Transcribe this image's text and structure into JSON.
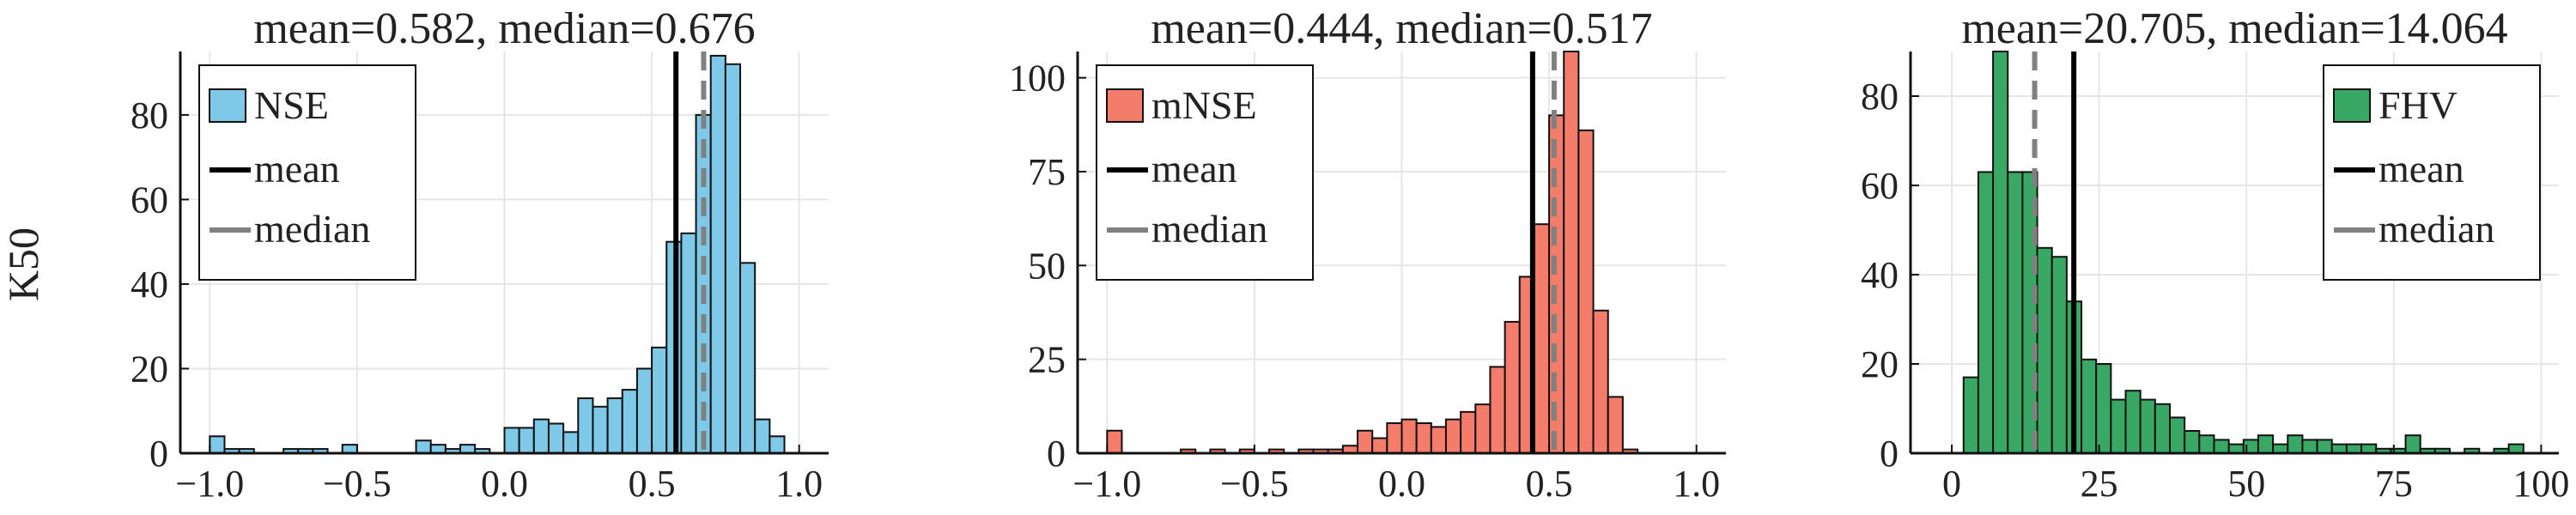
{
  "figure": {
    "row_label": "K50"
  },
  "chart_data": [
    {
      "type": "bar",
      "subtype": "histogram",
      "title": "mean=0.582, median=0.676",
      "xlabel": "",
      "ylabel": "K50",
      "xlim": [
        -1.1,
        1.1
      ],
      "ylim": [
        0,
        95
      ],
      "xticks": [
        -1.0,
        -0.5,
        0.0,
        0.5,
        1.0
      ],
      "xtick_labels": [
        "−1.0",
        "−0.5",
        "0.0",
        "0.5",
        "1.0"
      ],
      "yticks": [
        0,
        20,
        40,
        60,
        80
      ],
      "ytick_labels": [
        "0",
        "20",
        "40",
        "60",
        "80"
      ],
      "grid": true,
      "color": "#7ec8e8",
      "bin_start": -1.0,
      "bin_width": 0.05,
      "counts": [
        4,
        1,
        1,
        0,
        0,
        1,
        1,
        1,
        0,
        2,
        0,
        0,
        0,
        0,
        3,
        2,
        1,
        2,
        1,
        0,
        6,
        6,
        8,
        7,
        5,
        13,
        11,
        13,
        15,
        20,
        25,
        50,
        52,
        80,
        94,
        92,
        45,
        8,
        4,
        0
      ],
      "mean": 0.582,
      "median": 0.676,
      "legend": {
        "position": "top-left",
        "entries": [
          "NSE",
          "mean",
          "median"
        ]
      }
    },
    {
      "type": "bar",
      "subtype": "histogram",
      "title": "mean=0.444, median=0.517",
      "xlabel": "",
      "ylabel": "",
      "xlim": [
        -1.1,
        1.1
      ],
      "ylim": [
        0,
        107
      ],
      "xticks": [
        -1.0,
        -0.5,
        0.0,
        0.5,
        1.0
      ],
      "xtick_labels": [
        "−1.0",
        "−0.5",
        "0.0",
        "0.5",
        "1.0"
      ],
      "yticks": [
        0,
        25,
        50,
        75,
        100
      ],
      "ytick_labels": [
        "0",
        "25",
        "50",
        "75",
        "100"
      ],
      "grid": true,
      "color": "#f47c6b",
      "bin_start": -1.0,
      "bin_width": 0.05,
      "counts": [
        6,
        0,
        0,
        0,
        0,
        1,
        0,
        1,
        0,
        1,
        0,
        1,
        0,
        1,
        1,
        1,
        2,
        6,
        4,
        8,
        9,
        8,
        7,
        9,
        11,
        13,
        23,
        35,
        47,
        61,
        90,
        107,
        86,
        38,
        15,
        1,
        0,
        0,
        0,
        0
      ],
      "mean": 0.444,
      "median": 0.517,
      "legend": {
        "position": "top-left",
        "entries": [
          "mNSE",
          "mean",
          "median"
        ]
      }
    },
    {
      "type": "bar",
      "subtype": "histogram",
      "title": "mean=20.705, median=14.064",
      "xlabel": "",
      "ylabel": "",
      "xlim": [
        -7,
        103
      ],
      "ylim": [
        0,
        90
      ],
      "xticks": [
        0,
        25,
        50,
        75,
        100
      ],
      "xtick_labels": [
        "0",
        "25",
        "50",
        "75",
        "100"
      ],
      "yticks": [
        0,
        20,
        40,
        60,
        80
      ],
      "ytick_labels": [
        "0",
        "20",
        "40",
        "60",
        "80"
      ],
      "grid": true,
      "color": "#3aa865",
      "bin_start": 2.0,
      "bin_width": 2.5,
      "counts": [
        17,
        63,
        90,
        63,
        63,
        46,
        44,
        34,
        21,
        20,
        12,
        14,
        12,
        11,
        8,
        5,
        4,
        3,
        2,
        3,
        4,
        2,
        4,
        3,
        3,
        2,
        2,
        2,
        1,
        1,
        4,
        1,
        1,
        0,
        1,
        0,
        1,
        2
      ],
      "mean": 20.705,
      "median": 14.064,
      "legend": {
        "position": "top-right",
        "entries": [
          "FHV",
          "mean",
          "median"
        ]
      }
    }
  ]
}
